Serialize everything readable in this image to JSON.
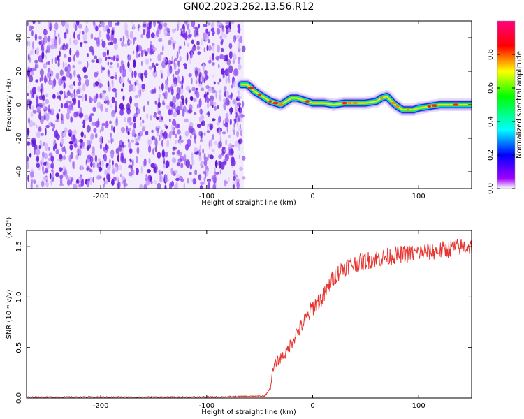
{
  "title": "GN02.2023.262.13.56.R12",
  "colors": {
    "snr_line": "#e8342f",
    "noise_purple": "#6a1fe0",
    "axis": "#000000"
  },
  "chart_data": [
    {
      "type": "heatmap",
      "title": "GN02.2023.262.13.56.R12",
      "xlabel": "Height of straight line (km)",
      "ylabel": "Frequency (Hz)",
      "xlim": [
        -270,
        150
      ],
      "ylim": [
        -50,
        50
      ],
      "x_ticks": [
        "-200",
        "-100",
        "0",
        "100"
      ],
      "y_ticks": [
        "40",
        "20",
        "0",
        "-20",
        "-40"
      ],
      "colorbar": {
        "label": "Normalized spectral amplitude",
        "range": [
          0,
          1
        ],
        "ticks": [
          "0.0",
          "0.2",
          "0.4",
          "0.6",
          "0.8"
        ],
        "colormap": [
          "#ffffff",
          "#a000ff",
          "#0000ff",
          "#00ffff",
          "#00ff00",
          "#ffff00",
          "#ff0000",
          "#ff00a0"
        ]
      },
      "noise_region": {
        "x_range": [
          -270,
          -65
        ],
        "amplitude": "low, scattered"
      },
      "signal_ridge": {
        "x": [
          -67,
          -62,
          -58,
          -55,
          -50,
          -45,
          -40,
          -35,
          -30,
          -25,
          -20,
          -15,
          -10,
          -5,
          0,
          10,
          20,
          30,
          40,
          50,
          60,
          65,
          70,
          73,
          76,
          80,
          85,
          90,
          95,
          100,
          110,
          120,
          130,
          140,
          150
        ],
        "y": [
          12,
          12,
          10,
          8,
          6,
          4,
          2,
          1,
          0,
          2,
          4,
          4,
          3,
          2,
          1,
          1,
          0,
          1,
          1,
          1,
          2,
          4,
          5,
          3,
          1,
          -1,
          -3,
          -3,
          -3,
          -2,
          -1,
          0,
          0,
          0,
          0
        ]
      }
    },
    {
      "type": "line",
      "xlabel": "Height of straight line (km)",
      "ylabel": "SNR (10 * v/v)",
      "y_scale_note": "(x10⁴)",
      "xlim": [
        -270,
        150
      ],
      "ylim": [
        0,
        1.66
      ],
      "x_ticks": [
        "-200",
        "-100",
        "0",
        "100"
      ],
      "y_ticks": [
        "0.0",
        "0.5",
        "1.0",
        "1.5"
      ],
      "series": [
        {
          "x": [
            -270,
            -200,
            -100,
            -45,
            -40,
            -38,
            -35,
            -30,
            -25,
            -20,
            -15,
            -10,
            -5,
            0,
            5,
            10,
            15,
            20,
            25,
            30,
            40,
            50,
            60,
            70,
            80,
            90,
            100,
            110,
            120,
            130,
            140,
            150
          ],
          "values": [
            0.01,
            0.01,
            0.01,
            0.02,
            0.1,
            0.25,
            0.35,
            0.4,
            0.45,
            0.55,
            0.65,
            0.72,
            0.8,
            0.9,
            0.95,
            1.0,
            1.1,
            1.2,
            1.25,
            1.3,
            1.33,
            1.36,
            1.38,
            1.4,
            1.42,
            1.43,
            1.44,
            1.45,
            1.46,
            1.48,
            1.5,
            1.5
          ]
        }
      ]
    }
  ]
}
